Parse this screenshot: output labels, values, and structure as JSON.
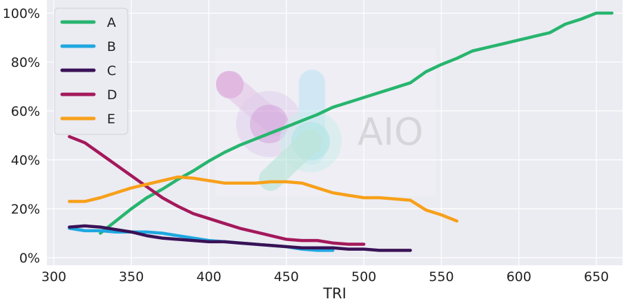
{
  "chart_data": {
    "type": "line",
    "xlabel": "TRI",
    "ylabel": "",
    "xlim": [
      290,
      672
    ],
    "ylim": [
      0,
      100
    ],
    "x_ticks": [
      300,
      350,
      400,
      450,
      500,
      550,
      600,
      650
    ],
    "y_ticks": [
      0,
      20,
      40,
      60,
      80,
      100
    ],
    "y_tick_suffix": "%",
    "grid": true,
    "legend_position": "top-left",
    "watermark": "AIO",
    "series": [
      {
        "name": "A",
        "color": "#27b56e",
        "x": [
          330,
          340,
          350,
          360,
          370,
          380,
          390,
          400,
          410,
          420,
          430,
          440,
          450,
          460,
          470,
          480,
          490,
          500,
          510,
          520,
          530,
          540,
          550,
          560,
          570,
          580,
          590,
          600,
          610,
          620,
          630,
          640,
          650,
          660
        ],
        "y": [
          10,
          15,
          20,
          24.5,
          28,
          32,
          35.5,
          39.5,
          43,
          46,
          48.5,
          51,
          53.5,
          56,
          58.5,
          61.5,
          63.5,
          65.5,
          67.5,
          69.5,
          71.5,
          76,
          79,
          81.5,
          84.5,
          86,
          87.5,
          89,
          90.5,
          92,
          95.5,
          97.5,
          100,
          100
        ]
      },
      {
        "name": "B",
        "color": "#1fa7e0",
        "x": [
          310,
          320,
          330,
          340,
          350,
          360,
          370,
          380,
          390,
          400,
          410,
          420,
          430,
          440,
          450,
          460,
          470,
          480
        ],
        "y": [
          12,
          11,
          11,
          10.5,
          10.5,
          10.5,
          10,
          9,
          8,
          7,
          6.5,
          6,
          5.5,
          5,
          4.5,
          3.5,
          3,
          3
        ]
      },
      {
        "name": "C",
        "color": "#3a1256",
        "x": [
          310,
          320,
          330,
          340,
          350,
          360,
          370,
          380,
          390,
          400,
          410,
          420,
          430,
          440,
          450,
          460,
          470,
          480,
          490,
          500,
          510,
          520,
          530
        ],
        "y": [
          12.5,
          13,
          12.5,
          11.5,
          10.5,
          9,
          8,
          7.5,
          7,
          6.5,
          6.5,
          6,
          5.5,
          5,
          4.5,
          4,
          4,
          4,
          3.5,
          3.5,
          3,
          3,
          3
        ]
      },
      {
        "name": "D",
        "color": "#a3195b",
        "x": [
          310,
          320,
          330,
          340,
          350,
          360,
          370,
          380,
          390,
          400,
          410,
          420,
          430,
          440,
          450,
          460,
          470,
          480,
          490,
          500
        ],
        "y": [
          49.5,
          47,
          42.5,
          38,
          33.5,
          29,
          24.5,
          21,
          18,
          16,
          14,
          12,
          10.5,
          9,
          7.5,
          7,
          7,
          6,
          5.5,
          5.5
        ]
      },
      {
        "name": "E",
        "color": "#f7a01a",
        "x": [
          310,
          320,
          330,
          340,
          350,
          360,
          370,
          380,
          390,
          400,
          410,
          420,
          430,
          440,
          450,
          460,
          470,
          480,
          490,
          500,
          510,
          520,
          530,
          540,
          550,
          560
        ],
        "y": [
          23,
          23,
          24.5,
          26.5,
          28.5,
          30,
          31.5,
          33,
          32.5,
          31.5,
          30.5,
          30.5,
          30.5,
          31,
          31,
          30.5,
          28.5,
          26.5,
          25.5,
          24.5,
          24.5,
          24,
          23.5,
          19.5,
          17.5,
          15
        ]
      }
    ]
  }
}
